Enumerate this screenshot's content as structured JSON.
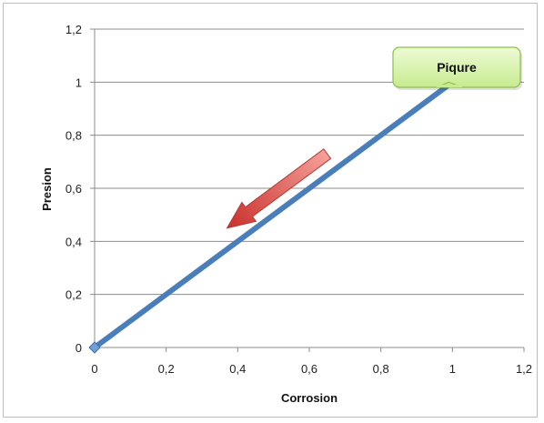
{
  "chart_data": {
    "type": "line",
    "title": "",
    "xlabel": "Corrosion",
    "ylabel": "Presion",
    "xlim": [
      0,
      1.2
    ],
    "ylim": [
      0,
      1.2
    ],
    "x_ticks": [
      "0",
      "0,2",
      "0,4",
      "0,6",
      "0,8",
      "1",
      "1,2"
    ],
    "y_ticks": [
      "0",
      "0,2",
      "0,4",
      "0,6",
      "0,8",
      "1",
      "1,2"
    ],
    "grid": "horizontal",
    "legend": "none",
    "series": [
      {
        "color": "#4a7ebb",
        "marker": "diamond",
        "points": [
          {
            "x": 0,
            "y": 0
          },
          {
            "x": 1,
            "y": 1
          }
        ]
      }
    ],
    "annotations": [
      {
        "type": "callout",
        "text": "Piqure",
        "target": {
          "x": 1,
          "y": 1
        },
        "fill": "#d7f3a6",
        "border": "#8bbf4a"
      },
      {
        "type": "arrow",
        "direction": "down-left",
        "from": {
          "x": 0.65,
          "y": 0.73
        },
        "to": {
          "x": 0.37,
          "y": 0.45
        },
        "color": "#d9534f"
      }
    ]
  }
}
